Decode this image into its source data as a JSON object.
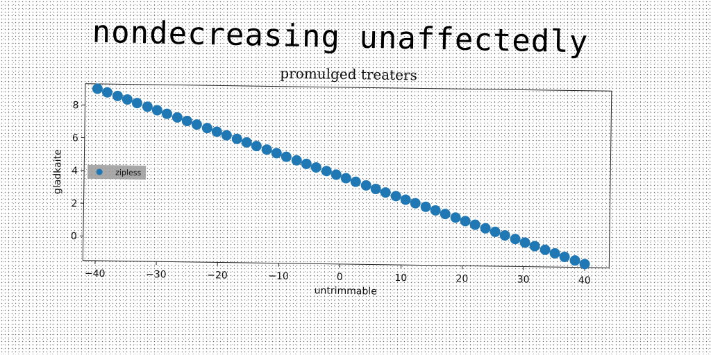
{
  "page_title": "nondecreasing unaffectedly",
  "chart_data": {
    "type": "scatter",
    "title": "promulged treaters",
    "xlabel": "untrimmable",
    "ylabel": "gladkaite",
    "xlim": [
      -42,
      44
    ],
    "ylim": [
      -1.5,
      9.3
    ],
    "xticks": [
      -40,
      -30,
      -20,
      -10,
      0,
      10,
      20,
      30,
      40
    ],
    "yticks": [
      0,
      2,
      4,
      6,
      8
    ],
    "grid": false,
    "legend_position": "center-left",
    "series": [
      {
        "name": "zipless",
        "color": "#1f77b4",
        "x": [
          -40,
          -38.4,
          -36.7,
          -35.1,
          -33.5,
          -31.8,
          -30.2,
          -28.6,
          -26.9,
          -25.3,
          -23.7,
          -22.0,
          -20.4,
          -18.8,
          -17.1,
          -15.5,
          -13.9,
          -12.2,
          -10.6,
          -9.0,
          -7.3,
          -5.7,
          -4.1,
          -2.4,
          -0.8,
          0.8,
          2.4,
          4.1,
          5.7,
          7.3,
          9.0,
          10.6,
          12.2,
          13.9,
          15.5,
          17.1,
          18.8,
          20.4,
          22.0,
          23.7,
          25.3,
          26.9,
          28.6,
          30.2,
          31.8,
          33.5,
          35.1,
          36.7,
          38.4,
          40
        ],
        "y": [
          9.0,
          8.79,
          8.58,
          8.37,
          8.16,
          7.95,
          7.74,
          7.53,
          7.32,
          7.11,
          6.9,
          6.69,
          6.48,
          6.27,
          6.06,
          5.85,
          5.64,
          5.43,
          5.22,
          5.01,
          4.8,
          4.59,
          4.38,
          4.17,
          3.96,
          3.75,
          3.54,
          3.33,
          3.12,
          2.91,
          2.7,
          2.49,
          2.28,
          2.07,
          1.86,
          1.65,
          1.44,
          1.23,
          1.02,
          0.81,
          0.6,
          0.39,
          0.18,
          -0.03,
          -0.24,
          -0.45,
          -0.66,
          -0.87,
          -1.08,
          -1.29
        ]
      }
    ]
  }
}
